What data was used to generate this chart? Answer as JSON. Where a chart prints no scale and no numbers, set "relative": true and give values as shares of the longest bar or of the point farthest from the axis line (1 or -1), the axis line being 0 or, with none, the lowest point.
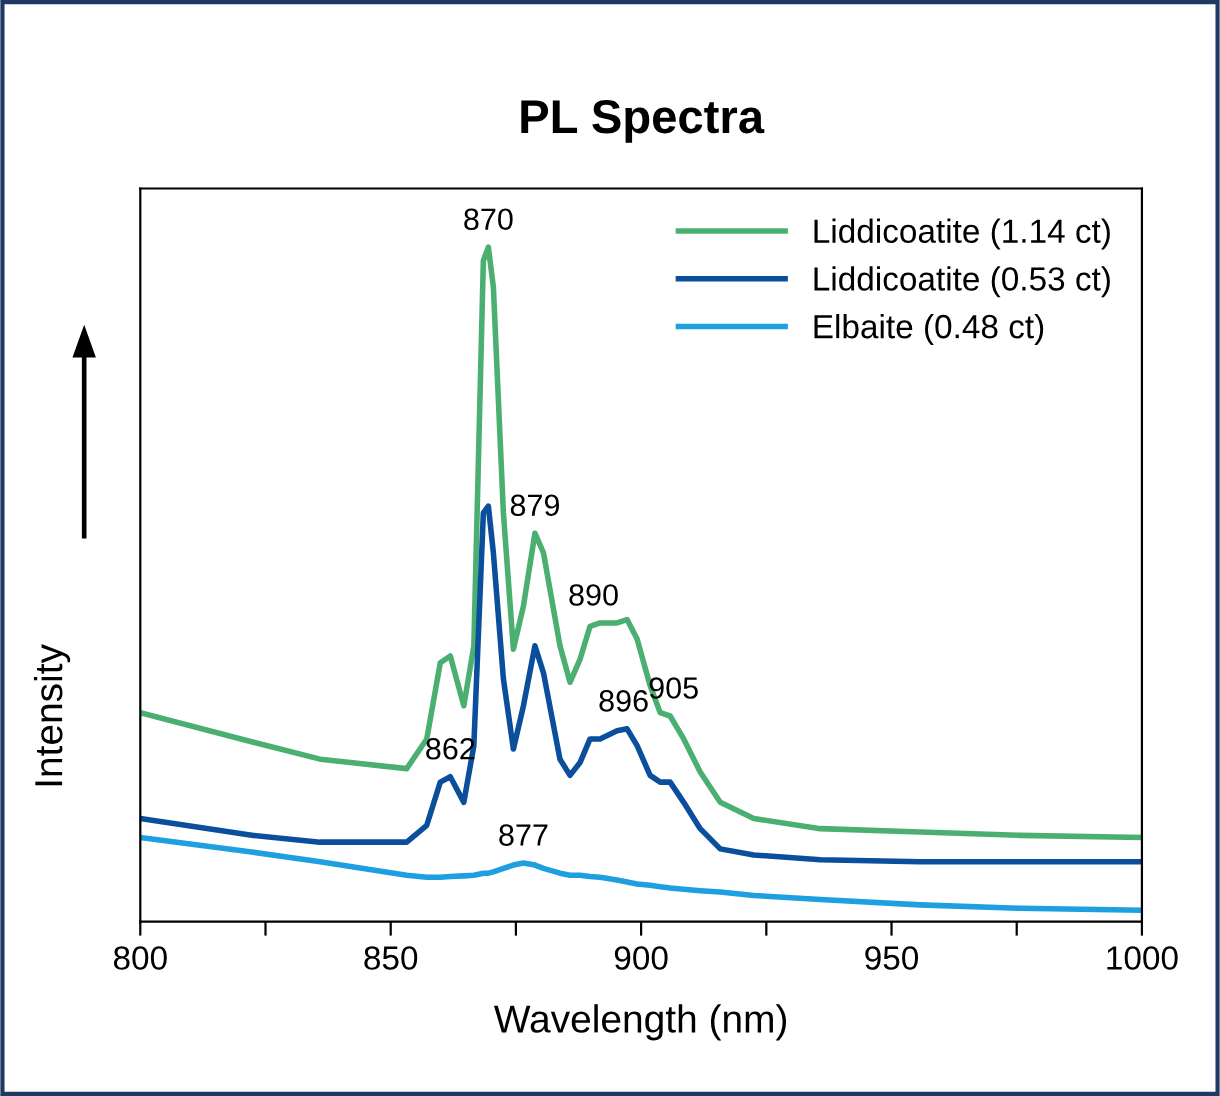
{
  "chart_data": {
    "type": "line",
    "title": "PL Spectra",
    "xlabel": "Wavelength (nm)",
    "ylabel": "Intensity",
    "relative": true,
    "x": [
      800,
      822.6,
      835.9,
      853.2,
      857.2,
      859.9,
      861.9,
      864.6,
      866.6,
      868.5,
      869.5,
      870.5,
      872.5,
      874.5,
      876.5,
      878.8,
      880.5,
      883.8,
      885.8,
      887.8,
      889.8,
      891.8,
      895.2,
      897.2,
      899.2,
      901.8,
      903.8,
      905.8,
      908.5,
      911.8,
      915.8,
      922.5,
      935.8,
      955.7,
      975.7,
      1000
    ],
    "series": [
      {
        "name": "Liddicoatite (1.14 ct)",
        "color": "#4caf72",
        "values": [
          0.31,
          0.266,
          0.241,
          0.227,
          0.271,
          0.384,
          0.394,
          0.32,
          0.409,
          0.98,
          1.0,
          0.941,
          0.606,
          0.404,
          0.468,
          0.576,
          0.547,
          0.409,
          0.355,
          0.389,
          0.438,
          0.443,
          0.443,
          0.448,
          0.419,
          0.35,
          0.31,
          0.305,
          0.271,
          0.222,
          0.177,
          0.153,
          0.138,
          0.133,
          0.128,
          0.125
        ]
      },
      {
        "name": "Liddicoatite (0.53 ct)",
        "color": "#0b4f9c",
        "values": [
          0.153,
          0.128,
          0.118,
          0.118,
          0.143,
          0.207,
          0.215,
          0.177,
          0.261,
          0.606,
          0.616,
          0.547,
          0.36,
          0.256,
          0.32,
          0.409,
          0.369,
          0.241,
          0.217,
          0.236,
          0.271,
          0.271,
          0.283,
          0.286,
          0.261,
          0.217,
          0.207,
          0.207,
          0.177,
          0.138,
          0.108,
          0.099,
          0.092,
          0.089,
          0.089,
          0.089
        ]
      },
      {
        "name": "Elbaite (0.48 ct)",
        "color": "#1ea0e0",
        "values": [
          0.125,
          0.103,
          0.089,
          0.069,
          0.066,
          0.066,
          0.067,
          0.068,
          0.069,
          0.072,
          0.072,
          0.074,
          0.079,
          0.084,
          0.087,
          0.084,
          0.079,
          0.072,
          0.069,
          0.069,
          0.067,
          0.066,
          0.062,
          0.059,
          0.056,
          0.054,
          0.052,
          0.05,
          0.048,
          0.046,
          0.044,
          0.039,
          0.033,
          0.025,
          0.02,
          0.017
        ]
      }
    ],
    "xlim": [
      800,
      1000
    ],
    "xticks": [
      800,
      {
        "value": 825,
        "label": null
      },
      850,
      {
        "value": 875,
        "label": null
      },
      900,
      {
        "value": 925,
        "label": null
      },
      950,
      {
        "value": 975,
        "label": null
      },
      1000
    ],
    "annotations": [
      {
        "text": "870",
        "x": 869.5,
        "y": 1.0
      },
      {
        "text": "879",
        "x": 878.8,
        "y": 0.576
      },
      {
        "text": "890",
        "x": 890.5,
        "y": 0.443
      },
      {
        "text": "905",
        "x": 906.5,
        "y": 0.305
      },
      {
        "text": "896",
        "x": 896.5,
        "y": 0.286
      },
      {
        "text": "862",
        "x": 861.9,
        "y": 0.215
      },
      {
        "text": "877",
        "x": 876.5,
        "y": 0.087
      }
    ],
    "legend": "top right",
    "grid": false,
    "marker": "none",
    "line_style": "solid"
  }
}
